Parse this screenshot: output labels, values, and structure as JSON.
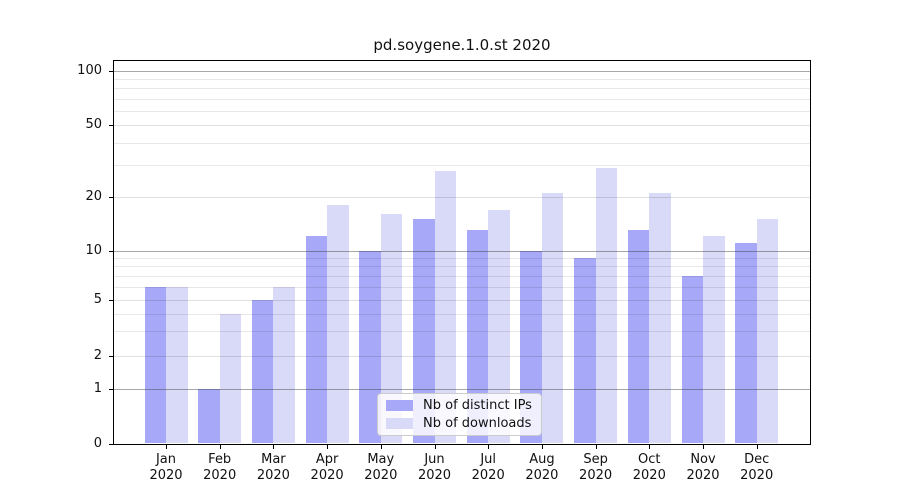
{
  "chart_data": {
    "type": "bar",
    "title": "pd.soygene.1.0.st 2020",
    "categories": [
      "Jan",
      "Feb",
      "Mar",
      "Apr",
      "May",
      "Jun",
      "Jul",
      "Aug",
      "Sep",
      "Oct",
      "Nov",
      "Dec"
    ],
    "year_label": "2020",
    "series": [
      {
        "name": "Nb of distinct IPs",
        "color": "#a8a8f8",
        "values": [
          6,
          1,
          5,
          12,
          10,
          15,
          13,
          10,
          9,
          13,
          7,
          11
        ]
      },
      {
        "name": "Nb of downloads",
        "color": "#d9d9f8",
        "values": [
          6,
          4,
          6,
          18,
          16,
          28,
          17,
          21,
          29,
          21,
          12,
          15
        ]
      }
    ],
    "y_axis": {
      "ticks": [
        0,
        1,
        2,
        5,
        10,
        20,
        50,
        100
      ],
      "scale": "log-like",
      "range_top": 130
    },
    "x_axis": {
      "label_format": "month + year"
    },
    "grid": true,
    "legend_position": "bottom-center"
  }
}
